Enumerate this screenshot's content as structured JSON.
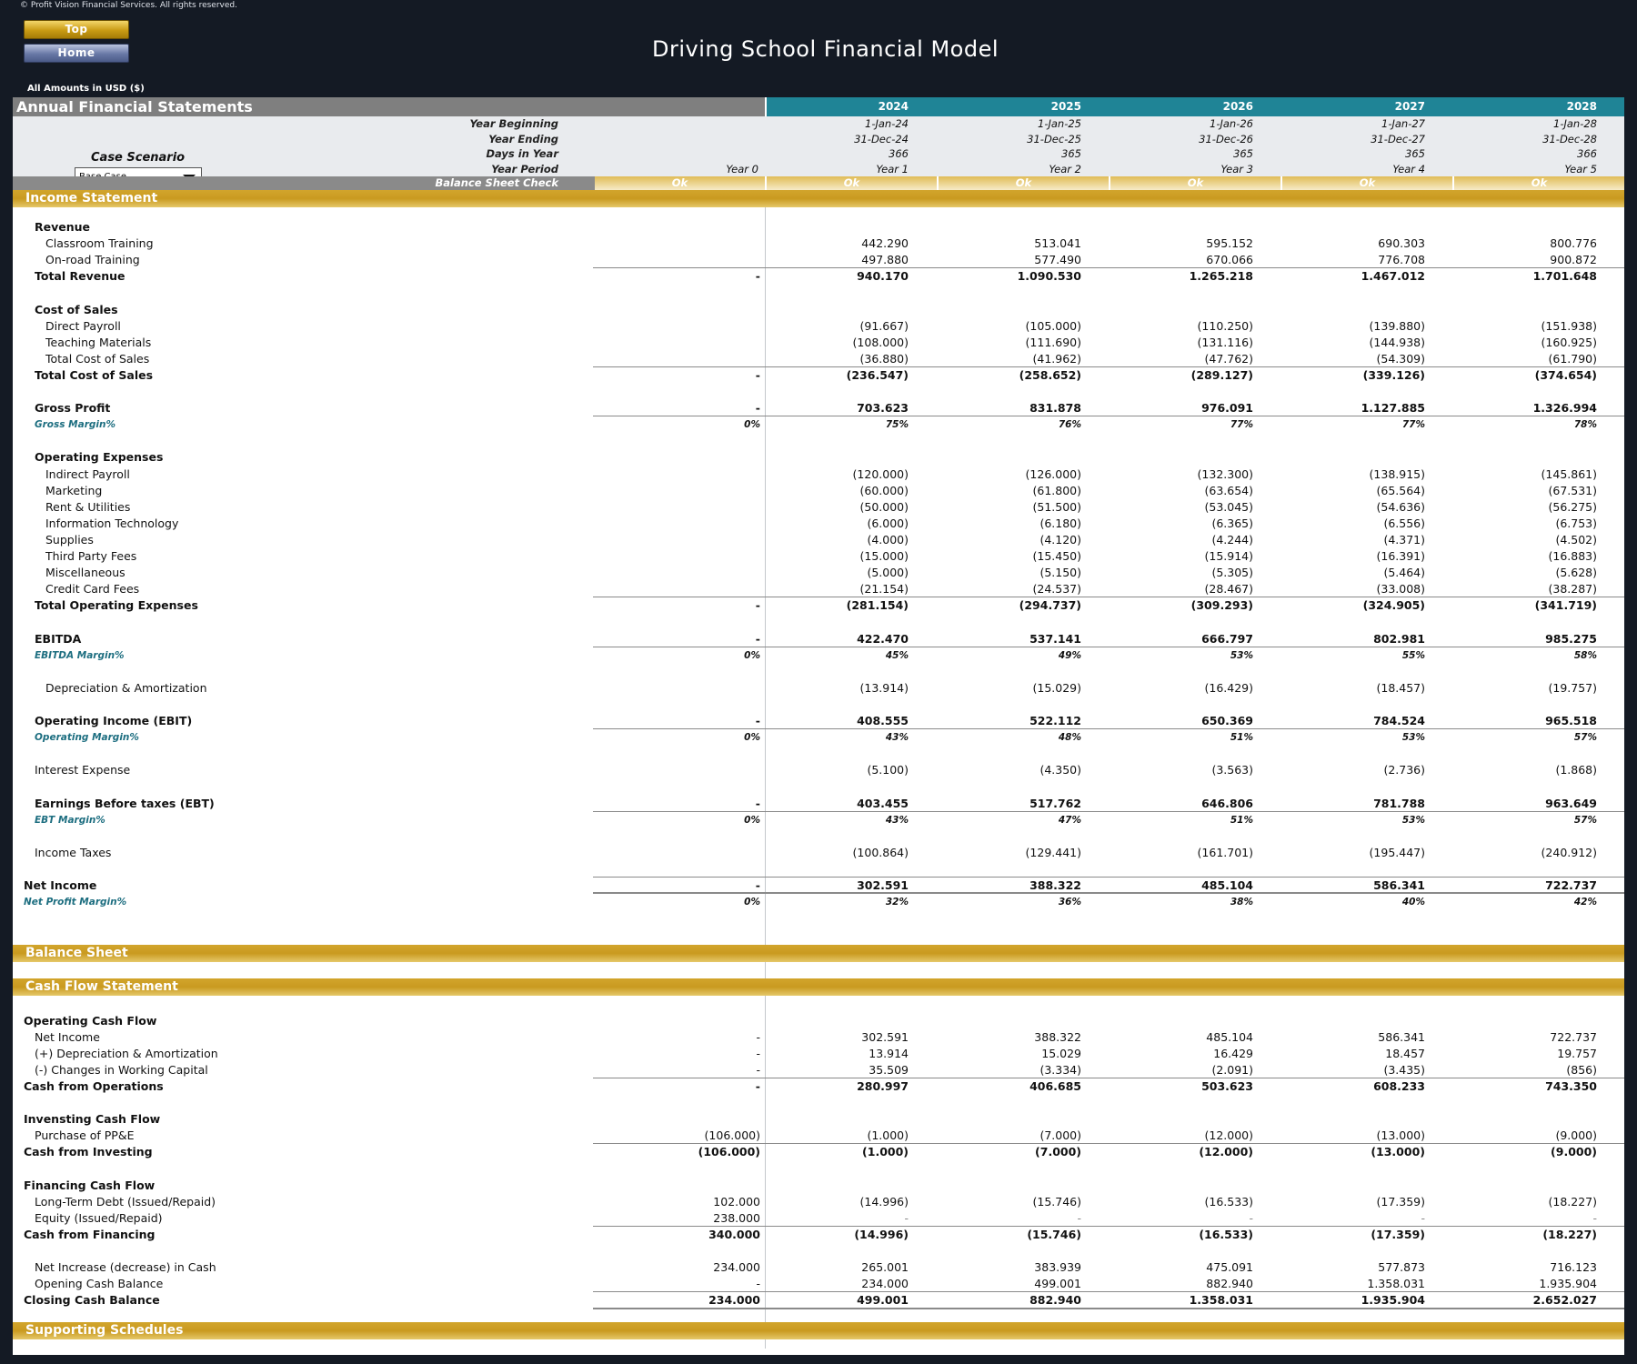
{
  "copyright": "© Profit Vision Financial Services. All rights reserved.",
  "nav": {
    "top": "Top",
    "home": "Home"
  },
  "title": "Driving School Financial Model",
  "amounts": "All Amounts in  USD ($)",
  "header": {
    "label": "Annual Financial Statements",
    "years": [
      "2024",
      "2025",
      "2026",
      "2027",
      "2028"
    ]
  },
  "meta": {
    "labels": [
      "Year Beginning",
      "Year Ending",
      "Days in Year",
      "Year Period"
    ],
    "year0": "Year 0",
    "year_beginning": [
      "1-Jan-24",
      "1-Jan-25",
      "1-Jan-26",
      "1-Jan-27",
      "1-Jan-28"
    ],
    "year_ending": [
      "31-Dec-24",
      "31-Dec-25",
      "31-Dec-26",
      "31-Dec-27",
      "31-Dec-28"
    ],
    "days": [
      "366",
      "365",
      "365",
      "365",
      "366"
    ],
    "period": [
      "Year 1",
      "Year 2",
      "Year 3",
      "Year 4",
      "Year 5"
    ]
  },
  "case": {
    "title": "Case Scenario",
    "value": "Base Case"
  },
  "balance_check": {
    "label": "Balance Sheet Check",
    "values": [
      "Ok",
      "Ok",
      "Ok",
      "Ok",
      "Ok",
      "Ok"
    ]
  },
  "sections": {
    "income": "Income Statement",
    "balance": "Balance Sheet",
    "cashflow": "Cash Flow Statement",
    "supporting": "Supporting Schedules"
  },
  "income_rows": [
    {
      "label": "Revenue",
      "indent": 1,
      "style": "bold",
      "y0": "",
      "v": [
        "",
        "",
        "",
        "",
        ""
      ]
    },
    {
      "label": "Classroom Training",
      "indent": 2,
      "style": "",
      "y0": "",
      "v": [
        "442.290",
        "513.041",
        "595.152",
        "690.303",
        "800.776"
      ]
    },
    {
      "label": "On-road Training",
      "indent": 2,
      "style": "",
      "y0": "",
      "v": [
        "497.880",
        "577.490",
        "670.066",
        "776.708",
        "900.872"
      ]
    },
    {
      "label": "Total Revenue",
      "indent": 1,
      "style": "bold total",
      "y0": "-",
      "v": [
        "940.170",
        "1.090.530",
        "1.265.218",
        "1.467.012",
        "1.701.648"
      ]
    },
    {
      "label": "",
      "indent": 1,
      "style": "",
      "y0": "",
      "v": [
        "",
        "",
        "",
        "",
        ""
      ]
    },
    {
      "label": "Cost of Sales",
      "indent": 1,
      "style": "bold",
      "y0": "",
      "v": [
        "",
        "",
        "",
        "",
        ""
      ]
    },
    {
      "label": "Direct Payroll",
      "indent": 2,
      "style": "",
      "y0": "",
      "v": [
        "(91.667)",
        "(105.000)",
        "(110.250)",
        "(139.880)",
        "(151.938)"
      ]
    },
    {
      "label": "Teaching Materials",
      "indent": 2,
      "style": "",
      "y0": "",
      "v": [
        "(108.000)",
        "(111.690)",
        "(131.116)",
        "(144.938)",
        "(160.925)"
      ]
    },
    {
      "label": "Total Cost of Sales",
      "indent": 2,
      "style": "",
      "y0": "",
      "v": [
        "(36.880)",
        "(41.962)",
        "(47.762)",
        "(54.309)",
        "(61.790)"
      ]
    },
    {
      "label": "Total Cost of Sales",
      "indent": 1,
      "style": "bold total",
      "y0": "-",
      "v": [
        "(236.547)",
        "(258.652)",
        "(289.127)",
        "(339.126)",
        "(374.654)"
      ]
    },
    {
      "label": "",
      "indent": 1,
      "style": "",
      "y0": "",
      "v": [
        "",
        "",
        "",
        "",
        ""
      ]
    },
    {
      "label": "Gross Profit",
      "indent": 1,
      "style": "bold",
      "y0": "-",
      "v": [
        "703.623",
        "831.878",
        "976.091",
        "1.127.885",
        "1.326.994"
      ]
    },
    {
      "label": "Gross Margin%",
      "indent": 1,
      "style": "pct total",
      "y0": "0%",
      "v": [
        "75%",
        "76%",
        "77%",
        "77%",
        "78%"
      ]
    },
    {
      "label": "",
      "indent": 1,
      "style": "",
      "y0": "",
      "v": [
        "",
        "",
        "",
        "",
        ""
      ]
    },
    {
      "label": "Operating Expenses",
      "indent": 1,
      "style": "bold",
      "y0": "",
      "v": [
        "",
        "",
        "",
        "",
        ""
      ]
    },
    {
      "label": "Indirect Payroll",
      "indent": 2,
      "style": "",
      "y0": "",
      "v": [
        "(120.000)",
        "(126.000)",
        "(132.300)",
        "(138.915)",
        "(145.861)"
      ]
    },
    {
      "label": "Marketing",
      "indent": 2,
      "style": "",
      "y0": "",
      "v": [
        "(60.000)",
        "(61.800)",
        "(63.654)",
        "(65.564)",
        "(67.531)"
      ]
    },
    {
      "label": "Rent & Utilities",
      "indent": 2,
      "style": "",
      "y0": "",
      "v": [
        "(50.000)",
        "(51.500)",
        "(53.045)",
        "(54.636)",
        "(56.275)"
      ]
    },
    {
      "label": "Information Technology",
      "indent": 2,
      "style": "",
      "y0": "",
      "v": [
        "(6.000)",
        "(6.180)",
        "(6.365)",
        "(6.556)",
        "(6.753)"
      ]
    },
    {
      "label": "Supplies",
      "indent": 2,
      "style": "",
      "y0": "",
      "v": [
        "(4.000)",
        "(4.120)",
        "(4.244)",
        "(4.371)",
        "(4.502)"
      ]
    },
    {
      "label": "Third Party Fees",
      "indent": 2,
      "style": "",
      "y0": "",
      "v": [
        "(15.000)",
        "(15.450)",
        "(15.914)",
        "(16.391)",
        "(16.883)"
      ]
    },
    {
      "label": "Miscellaneous",
      "indent": 2,
      "style": "",
      "y0": "",
      "v": [
        "(5.000)",
        "(5.150)",
        "(5.305)",
        "(5.464)",
        "(5.628)"
      ]
    },
    {
      "label": "Credit Card Fees",
      "indent": 2,
      "style": "",
      "y0": "",
      "v": [
        "(21.154)",
        "(24.537)",
        "(28.467)",
        "(33.008)",
        "(38.287)"
      ]
    },
    {
      "label": "Total Operating Expenses",
      "indent": 1,
      "style": "bold total",
      "y0": "-",
      "v": [
        "(281.154)",
        "(294.737)",
        "(309.293)",
        "(324.905)",
        "(341.719)"
      ]
    },
    {
      "label": "",
      "indent": 1,
      "style": "",
      "y0": "",
      "v": [
        "",
        "",
        "",
        "",
        ""
      ]
    },
    {
      "label": "EBITDA",
      "indent": 1,
      "style": "bold",
      "y0": "-",
      "v": [
        "422.470",
        "537.141",
        "666.797",
        "802.981",
        "985.275"
      ]
    },
    {
      "label": "EBITDA Margin%",
      "indent": 1,
      "style": "pct total",
      "y0": "0%",
      "v": [
        "45%",
        "49%",
        "53%",
        "55%",
        "58%"
      ]
    },
    {
      "label": "",
      "indent": 1,
      "style": "",
      "y0": "",
      "v": [
        "",
        "",
        "",
        "",
        ""
      ]
    },
    {
      "label": "Depreciation & Amortization",
      "indent": 2,
      "style": "",
      "y0": "",
      "v": [
        "(13.914)",
        "(15.029)",
        "(16.429)",
        "(18.457)",
        "(19.757)"
      ]
    },
    {
      "label": "",
      "indent": 1,
      "style": "",
      "y0": "",
      "v": [
        "",
        "",
        "",
        "",
        ""
      ]
    },
    {
      "label": "Operating Income (EBIT)",
      "indent": 1,
      "style": "bold",
      "y0": "-",
      "v": [
        "408.555",
        "522.112",
        "650.369",
        "784.524",
        "965.518"
      ]
    },
    {
      "label": "Operating Margin%",
      "indent": 1,
      "style": "pct total",
      "y0": "0%",
      "v": [
        "43%",
        "48%",
        "51%",
        "53%",
        "57%"
      ]
    },
    {
      "label": "",
      "indent": 1,
      "style": "",
      "y0": "",
      "v": [
        "",
        "",
        "",
        "",
        ""
      ]
    },
    {
      "label": "Interest Expense",
      "indent": 1,
      "style": "",
      "y0": "",
      "v": [
        "(5.100)",
        "(4.350)",
        "(3.563)",
        "(2.736)",
        "(1.868)"
      ]
    },
    {
      "label": "",
      "indent": 1,
      "style": "",
      "y0": "",
      "v": [
        "",
        "",
        "",
        "",
        ""
      ]
    },
    {
      "label": "Earnings Before taxes (EBT)",
      "indent": 1,
      "style": "bold",
      "y0": "-",
      "v": [
        "403.455",
        "517.762",
        "646.806",
        "781.788",
        "963.649"
      ]
    },
    {
      "label": "EBT Margin%",
      "indent": 1,
      "style": "pct total",
      "y0": "0%",
      "v": [
        "43%",
        "47%",
        "51%",
        "53%",
        "57%"
      ]
    },
    {
      "label": "",
      "indent": 1,
      "style": "",
      "y0": "",
      "v": [
        "",
        "",
        "",
        "",
        ""
      ]
    },
    {
      "label": "Income Taxes",
      "indent": 1,
      "style": "",
      "y0": "",
      "v": [
        "(100.864)",
        "(129.441)",
        "(161.701)",
        "(195.447)",
        "(240.912)"
      ]
    },
    {
      "label": "",
      "indent": 1,
      "style": "",
      "y0": "",
      "v": [
        "",
        "",
        "",
        "",
        ""
      ]
    },
    {
      "label": "Net Income",
      "indent": 0,
      "style": "bold total",
      "y0": "-",
      "v": [
        "302.591",
        "388.322",
        "485.104",
        "586.341",
        "722.737"
      ]
    },
    {
      "label": "Net Profit Margin%",
      "indent": 0,
      "style": "pct total",
      "y0": "0%",
      "v": [
        "32%",
        "36%",
        "38%",
        "40%",
        "42%"
      ]
    }
  ],
  "cash_rows": [
    {
      "label": "Operating Cash Flow",
      "indent": 0,
      "style": "bold",
      "y0": "",
      "v": [
        "",
        "",
        "",
        "",
        ""
      ]
    },
    {
      "label": "Net Income",
      "indent": 1,
      "style": "",
      "y0": "-",
      "v": [
        "302.591",
        "388.322",
        "485.104",
        "586.341",
        "722.737"
      ]
    },
    {
      "label": "(+) Depreciation & Amortization",
      "indent": 1,
      "style": "",
      "y0": "-",
      "v": [
        "13.914",
        "15.029",
        "16.429",
        "18.457",
        "19.757"
      ]
    },
    {
      "label": "(-) Changes in Working Capital",
      "indent": 1,
      "style": "",
      "y0": "-",
      "v": [
        "35.509",
        "(3.334)",
        "(2.091)",
        "(3.435)",
        "(856)"
      ]
    },
    {
      "label": "Cash from Operations",
      "indent": 0,
      "style": "bold total",
      "y0": "-",
      "v": [
        "280.997",
        "406.685",
        "503.623",
        "608.233",
        "743.350"
      ]
    },
    {
      "label": "",
      "indent": 0,
      "style": "",
      "y0": "",
      "v": [
        "",
        "",
        "",
        "",
        ""
      ]
    },
    {
      "label": "Invensting Cash Flow",
      "indent": 0,
      "style": "bold",
      "y0": "",
      "v": [
        "",
        "",
        "",
        "",
        ""
      ]
    },
    {
      "label": "Purchase of PP&E",
      "indent": 1,
      "style": "",
      "y0": "(106.000)",
      "v": [
        "(1.000)",
        "(7.000)",
        "(12.000)",
        "(13.000)",
        "(9.000)"
      ]
    },
    {
      "label": "Cash from Investing",
      "indent": 0,
      "style": "bold total",
      "y0": "(106.000)",
      "v": [
        "(1.000)",
        "(7.000)",
        "(12.000)",
        "(13.000)",
        "(9.000)"
      ]
    },
    {
      "label": "",
      "indent": 0,
      "style": "",
      "y0": "",
      "v": [
        "",
        "",
        "",
        "",
        ""
      ]
    },
    {
      "label": "Financing Cash Flow",
      "indent": 0,
      "style": "bold",
      "y0": "",
      "v": [
        "",
        "",
        "",
        "",
        ""
      ]
    },
    {
      "label": "Long-Term Debt (Issued/Repaid)",
      "indent": 1,
      "style": "",
      "y0": "102.000",
      "v": [
        "(14.996)",
        "(15.746)",
        "(16.533)",
        "(17.359)",
        "(18.227)"
      ]
    },
    {
      "label": "Equity (Issued/Repaid)",
      "indent": 1,
      "style": "",
      "y0": "238.000",
      "v": [
        "-",
        "-",
        "-",
        "-",
        "-"
      ]
    },
    {
      "label": "Cash from Financing",
      "indent": 0,
      "style": "bold total",
      "y0": "340.000",
      "v": [
        "(14.996)",
        "(15.746)",
        "(16.533)",
        "(17.359)",
        "(18.227)"
      ]
    },
    {
      "label": "",
      "indent": 0,
      "style": "",
      "y0": "",
      "v": [
        "",
        "",
        "",
        "",
        ""
      ]
    },
    {
      "label": "Net Increase (decrease) in Cash",
      "indent": 1,
      "style": "",
      "y0": "234.000",
      "v": [
        "265.001",
        "383.939",
        "475.091",
        "577.873",
        "716.123"
      ]
    },
    {
      "label": "Opening Cash Balance",
      "indent": 1,
      "style": "",
      "y0": "-",
      "v": [
        "234.000",
        "499.001",
        "882.940",
        "1.358.031",
        "1.935.904"
      ]
    },
    {
      "label": "Closing Cash Balance",
      "indent": 0,
      "style": "bold total",
      "y0": "234.000",
      "v": [
        "499.001",
        "882.940",
        "1.358.031",
        "1.935.904",
        "2.652.027"
      ]
    }
  ]
}
